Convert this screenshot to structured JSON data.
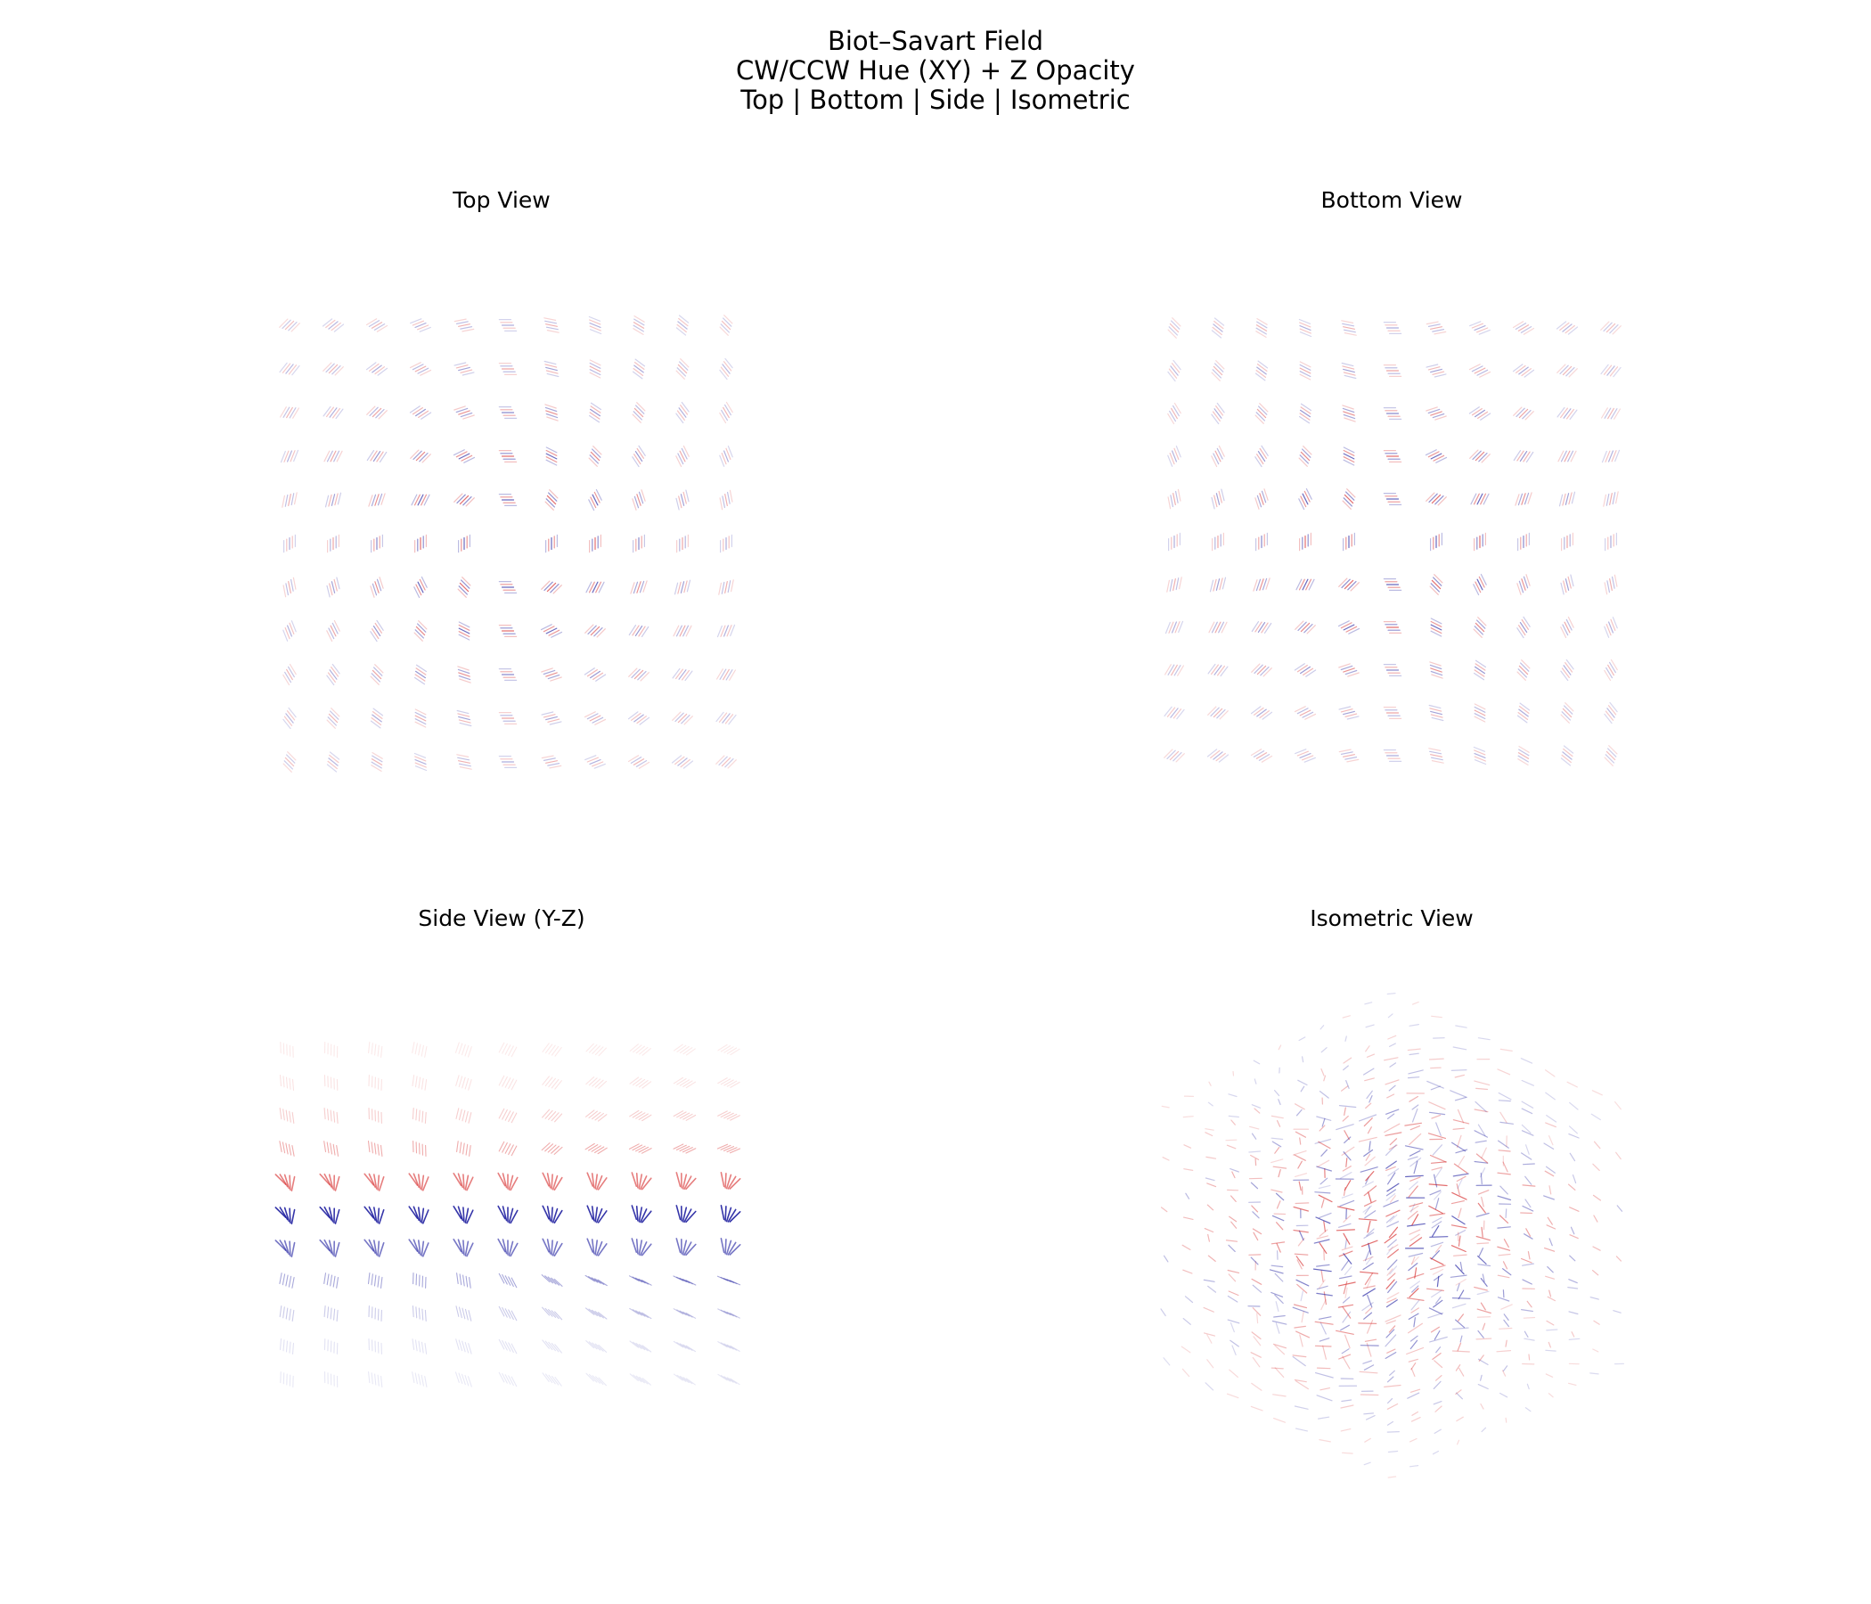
{
  "title_lines": [
    "Biot–Savart Field",
    "CW/CCW Hue (XY) + Z Opacity",
    "Top | Bottom | Side | Isometric"
  ],
  "colors": {
    "cw": "#d62a2a",
    "ccw": "#1f1fa0",
    "background": "#ffffff"
  },
  "chart_data": [
    {
      "type": "quiver",
      "view": "top",
      "title": "Top View",
      "grid": false,
      "axes_visible": false,
      "x": [
        -5,
        -4,
        -3,
        -2,
        -1,
        0,
        1,
        2,
        3,
        4,
        5
      ],
      "y": [
        -5,
        -4,
        -3,
        -2,
        -1,
        0,
        1,
        2,
        3,
        4,
        5
      ],
      "z_layers": 5,
      "field": "circulating about a vertical current through the center",
      "hue": "red = clockwise, blue = counter-clockwise",
      "opacity": "by |z|"
    },
    {
      "type": "quiver",
      "view": "bottom",
      "title": "Bottom View",
      "grid": false,
      "axes_visible": false,
      "x": [
        -5,
        -4,
        -3,
        -2,
        -1,
        0,
        1,
        2,
        3,
        4,
        5
      ],
      "y": [
        -5,
        -4,
        -3,
        -2,
        -1,
        0,
        1,
        2,
        3,
        4,
        5
      ],
      "z_layers": 5,
      "field": "circulating about a vertical current through the center",
      "hue": "red = clockwise, blue = counter-clockwise",
      "opacity": "by |z|"
    },
    {
      "type": "quiver",
      "view": "side",
      "title": "Side View (Y-Z)",
      "grid": false,
      "axes_visible": false,
      "y": [
        -5,
        -4,
        -3,
        -2,
        -1,
        0,
        1,
        2,
        3,
        4,
        5
      ],
      "z": [
        5,
        4,
        3,
        2,
        1,
        0,
        -1,
        -2,
        -3,
        -4,
        -5
      ],
      "field": "arrows converge toward the z = 0 plane",
      "hue": "red above the plane, blue below",
      "opacity": "strongest near z = 0"
    },
    {
      "type": "quiver",
      "view": "isometric",
      "title": "Isometric View",
      "grid": false,
      "axes_visible": false,
      "x": [
        -5,
        -4,
        -3,
        -2,
        -1,
        0,
        1,
        2,
        3,
        4,
        5
      ],
      "y": [
        -5,
        -4,
        -3,
        -2,
        -1,
        0,
        1,
        2,
        3,
        4,
        5
      ],
      "z": [
        -5,
        -3,
        -1,
        1,
        3,
        5
      ],
      "field": "3D circulating field",
      "hue": "red = clockwise, blue = counter-clockwise",
      "opacity": "by |z|"
    }
  ]
}
